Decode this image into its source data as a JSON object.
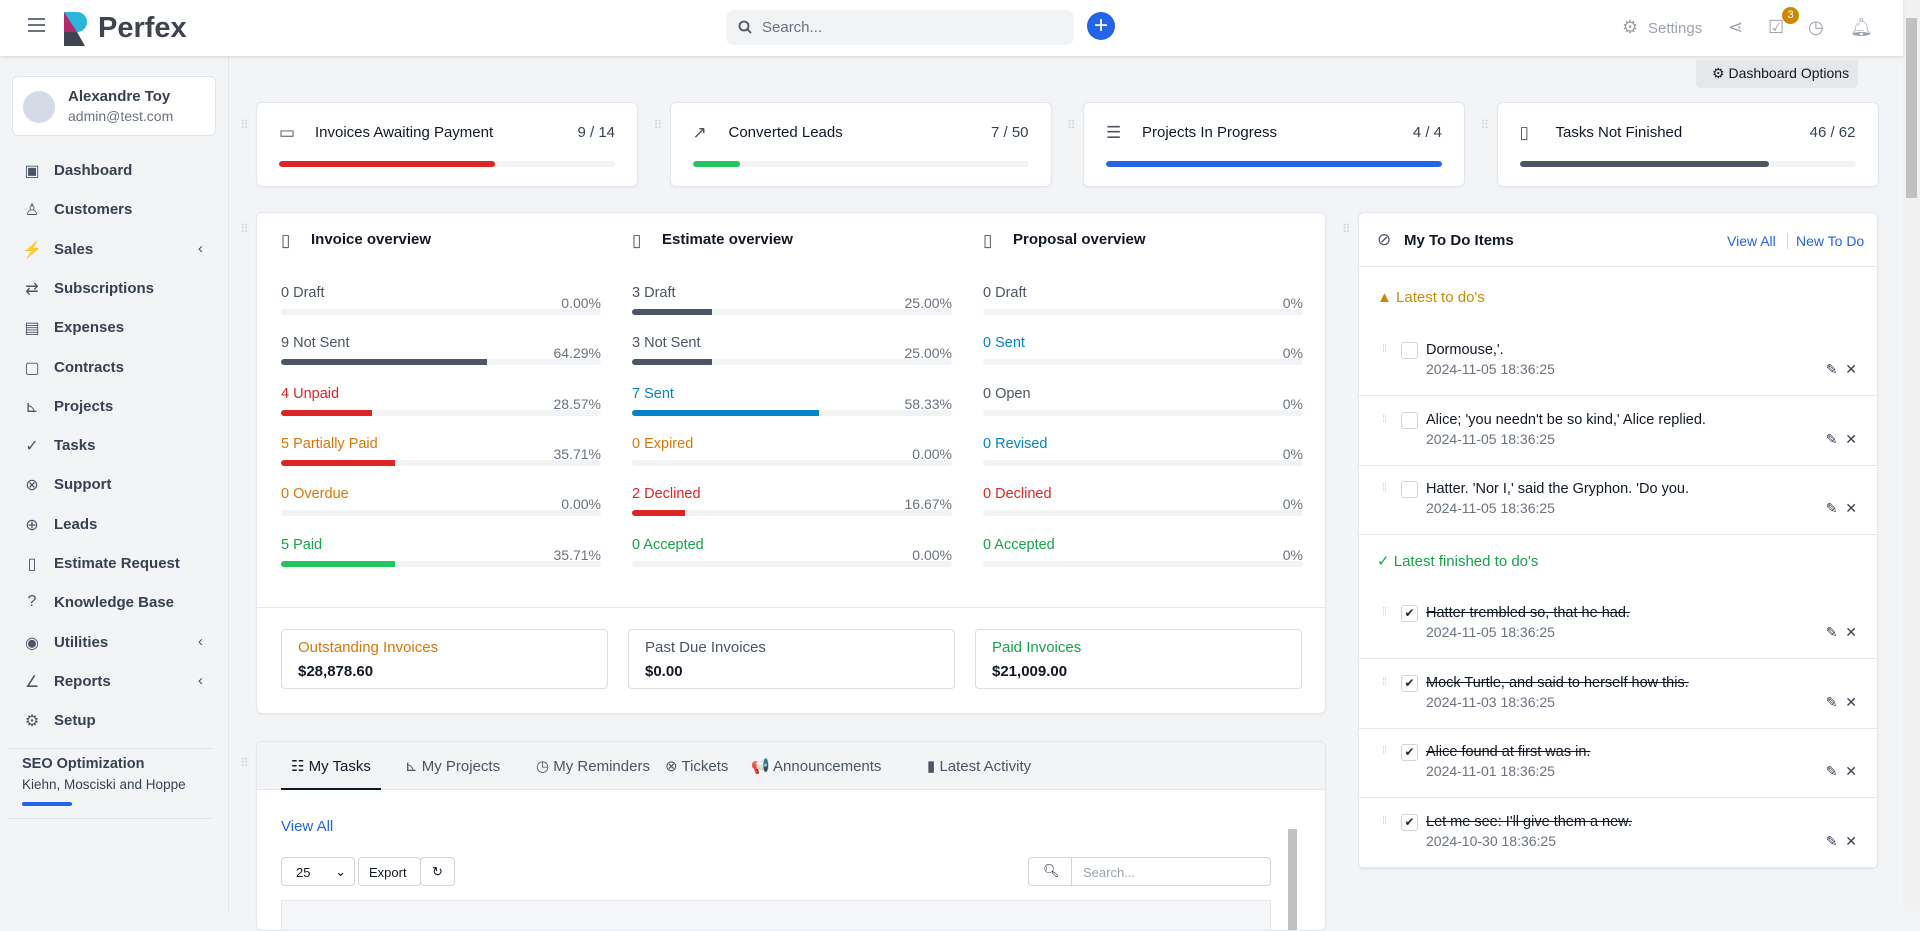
{
  "header": {
    "brand": "Perfex",
    "search_placeholder": "Search...",
    "settings_label": "Settings",
    "tasks_badge": "3"
  },
  "user": {
    "name": "Alexandre Toy",
    "email": "admin@test.com"
  },
  "sidebar": {
    "items": [
      {
        "label": "Dashboard",
        "icon": "dashboard-icon",
        "glyph": "▣"
      },
      {
        "label": "Customers",
        "icon": "user-icon",
        "glyph": "♙"
      },
      {
        "label": "Sales",
        "icon": "bolt-icon",
        "glyph": "⚡",
        "chevron": true
      },
      {
        "label": "Subscriptions",
        "icon": "repeat-icon",
        "glyph": "⇄"
      },
      {
        "label": "Expenses",
        "icon": "file-icon",
        "glyph": "▤"
      },
      {
        "label": "Contracts",
        "icon": "contract-icon",
        "glyph": "▢"
      },
      {
        "label": "Projects",
        "icon": "chart-gantt-icon",
        "glyph": "⊾"
      },
      {
        "label": "Tasks",
        "icon": "check-circle-icon",
        "glyph": "✓"
      },
      {
        "label": "Support",
        "icon": "lifebuoy-icon",
        "glyph": "⊗"
      },
      {
        "label": "Leads",
        "icon": "crosshair-icon",
        "glyph": "⊕"
      },
      {
        "label": "Estimate Request",
        "icon": "document-icon",
        "glyph": "▯"
      },
      {
        "label": "Knowledge Base",
        "icon": "question-icon",
        "glyph": "?"
      },
      {
        "label": "Utilities",
        "icon": "dot-circle-icon",
        "glyph": "◉",
        "chevron": true
      },
      {
        "label": "Reports",
        "icon": "line-chart-icon",
        "glyph": "∠",
        "chevron": true
      },
      {
        "label": "Setup",
        "icon": "cog-icon",
        "glyph": "⚙"
      }
    ],
    "project": {
      "name": "SEO Optimization",
      "client": "Kiehn, Mosciski and Hoppe",
      "progress": 25
    }
  },
  "dashboard_options": "Dashboard Options",
  "stats": [
    {
      "title": "Invoices Awaiting Payment",
      "value": "9 / 14",
      "progress": 64.29,
      "color": "#dc2626",
      "icon": "money-bill-icon",
      "glyph": "▭"
    },
    {
      "title": "Converted Leads",
      "value": "7 / 50",
      "progress": 14,
      "color": "#22c55e",
      "icon": "trend-up-icon",
      "glyph": "↗"
    },
    {
      "title": "Projects In Progress",
      "value": "4 / 4",
      "progress": 100,
      "color": "#2563eb",
      "icon": "sliders-icon",
      "glyph": "☰"
    },
    {
      "title": "Tasks Not Finished",
      "value": "46 / 62",
      "progress": 74.19,
      "color": "#4b5563",
      "icon": "file-check-icon",
      "glyph": "▯"
    }
  ],
  "overview": [
    {
      "title": "Invoice overview",
      "icon": "invoice-icon",
      "rows": [
        {
          "label": "0 Draft",
          "pct": "0.00%",
          "value": 0,
          "color": "#4b5563",
          "bar": "#4b5563"
        },
        {
          "label": "9 Not Sent",
          "pct": "64.29%",
          "value": 64.29,
          "color": "#4b5563",
          "bar": "#4b5563"
        },
        {
          "label": "4 Unpaid",
          "pct": "28.57%",
          "value": 28.57,
          "color": "#dc2626",
          "bar": "#dc2626"
        },
        {
          "label": "5 Partially Paid",
          "pct": "35.71%",
          "value": 35.71,
          "color": "#d97706",
          "bar": "#dc2626"
        },
        {
          "label": "0 Overdue",
          "pct": "0.00%",
          "value": 0,
          "color": "#d97706",
          "bar": "#d97706"
        },
        {
          "label": "5 Paid",
          "pct": "35.71%",
          "value": 35.71,
          "color": "#16a34a",
          "bar": "#22c55e"
        }
      ]
    },
    {
      "title": "Estimate overview",
      "icon": "estimate-icon",
      "rows": [
        {
          "label": "3 Draft",
          "pct": "25.00%",
          "value": 25,
          "color": "#4b5563",
          "bar": "#4b5563"
        },
        {
          "label": "3 Not Sent",
          "pct": "25.00%",
          "value": 25,
          "color": "#4b5563",
          "bar": "#4b5563"
        },
        {
          "label": "7 Sent",
          "pct": "58.33%",
          "value": 58.33,
          "color": "#0284c7",
          "bar": "#0284c7"
        },
        {
          "label": "0 Expired",
          "pct": "0.00%",
          "value": 0,
          "color": "#d97706",
          "bar": "#d97706"
        },
        {
          "label": "2 Declined",
          "pct": "16.67%",
          "value": 16.67,
          "color": "#dc2626",
          "bar": "#dc2626"
        },
        {
          "label": "0 Accepted",
          "pct": "0.00%",
          "value": 0,
          "color": "#16a34a",
          "bar": "#22c55e"
        }
      ]
    },
    {
      "title": "Proposal overview",
      "icon": "proposal-icon",
      "rows": [
        {
          "label": "0 Draft",
          "pct": "0%",
          "value": 0,
          "color": "#4b5563",
          "bar": "#4b5563"
        },
        {
          "label": "0 Sent",
          "pct": "0%",
          "value": 0,
          "color": "#0284c7",
          "bar": "#0284c7"
        },
        {
          "label": "0 Open",
          "pct": "0%",
          "value": 0,
          "color": "#4b5563",
          "bar": "#4b5563"
        },
        {
          "label": "0 Revised",
          "pct": "0%",
          "value": 0,
          "color": "#0284c7",
          "bar": "#0284c7"
        },
        {
          "label": "0 Declined",
          "pct": "0%",
          "value": 0,
          "color": "#dc2626",
          "bar": "#dc2626"
        },
        {
          "label": "0 Accepted",
          "pct": "0%",
          "value": 0,
          "color": "#16a34a",
          "bar": "#22c55e"
        }
      ]
    }
  ],
  "summary": [
    {
      "label": "Outstanding Invoices",
      "amount": "$28,878.60",
      "color": "#d97706"
    },
    {
      "label": "Past Due Invoices",
      "amount": "$0.00",
      "color": "#4b5563"
    },
    {
      "label": "Paid Invoices",
      "amount": "$21,009.00",
      "color": "#16a34a"
    }
  ],
  "todo": {
    "title": "My To Do Items",
    "view_all": "View All",
    "new": "New To Do",
    "latest_label": "Latest to do's",
    "finished_label": "Latest finished to do's",
    "latest": [
      {
        "text": "Dormouse,'.",
        "date": "2024-11-05 18:36:25"
      },
      {
        "text": "Alice; 'you needn't be so kind,' Alice replied.",
        "date": "2024-11-05 18:36:25"
      },
      {
        "text": "Hatter. 'Nor I,' said the Gryphon. 'Do you.",
        "date": "2024-11-05 18:36:25"
      }
    ],
    "finished": [
      {
        "text": "Hatter trembled so, that he had.",
        "date": "2024-11-05 18:36:25"
      },
      {
        "text": "Mock Turtle, and said to herself how this.",
        "date": "2024-11-03 18:36:25"
      },
      {
        "text": "Alice found at first was in.",
        "date": "2024-11-01 18:36:25"
      },
      {
        "text": "Let me see: I'll give them a new.",
        "date": "2024-10-30 18:36:25"
      }
    ]
  },
  "tabs": [
    {
      "label": "My Tasks",
      "icon": "tasks-icon",
      "glyph": "☷",
      "active": true
    },
    {
      "label": "My Projects",
      "icon": "projects-icon",
      "glyph": "⊾"
    },
    {
      "label": "My Reminders",
      "icon": "clock-icon",
      "glyph": "◷"
    },
    {
      "label": "Tickets",
      "icon": "lifebuoy-icon",
      "glyph": "⊗"
    },
    {
      "label": "Announcements",
      "icon": "bullhorn-icon",
      "glyph": "📢"
    },
    {
      "label": "Latest Activity",
      "icon": "activity-icon",
      "glyph": "▮"
    }
  ],
  "tasks_table": {
    "view_all": "View All",
    "page_size": "25",
    "export": "Export",
    "search_placeholder": "Search..."
  }
}
